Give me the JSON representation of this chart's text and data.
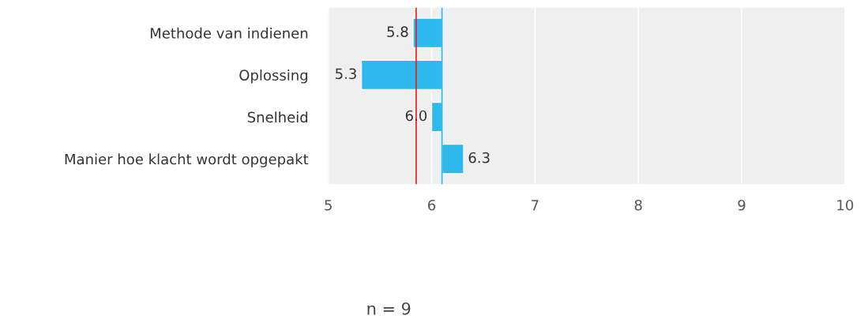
{
  "chart_data": {
    "type": "bar",
    "orientation": "horizontal",
    "categories": [
      "Methode van indienen",
      "Oplossing",
      "Snelheid",
      "Manier hoe klacht wordt opgepakt"
    ],
    "base": [
      6.1,
      6.1,
      6.1,
      6.1
    ],
    "values": [
      -0.28,
      -0.78,
      -0.1,
      0.21
    ],
    "value_labels": [
      "5.8",
      "5.3",
      "6.0",
      "6.3"
    ],
    "color": "#2fb8ec",
    "xlim": [
      5,
      10
    ],
    "xticks": [
      5,
      6,
      7,
      8,
      9,
      10
    ],
    "grid": "x",
    "ref_lines": [
      {
        "axis": "x",
        "value": 5.85,
        "color": "#e8201a"
      },
      {
        "axis": "x",
        "value": 6.1,
        "color": "#2fb8ec"
      }
    ],
    "annotations": [
      "n = 9"
    ]
  }
}
